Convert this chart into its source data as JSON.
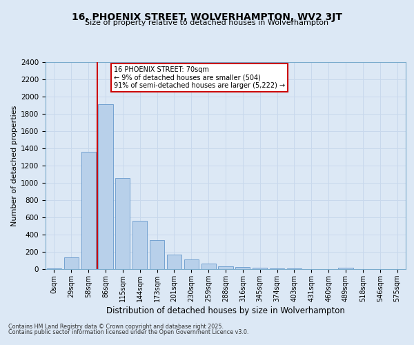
{
  "title": "16, PHOENIX STREET, WOLVERHAMPTON, WV2 3JT",
  "subtitle": "Size of property relative to detached houses in Wolverhampton",
  "xlabel": "Distribution of detached houses by size in Wolverhampton",
  "ylabel": "Number of detached properties",
  "categories": [
    "0sqm",
    "29sqm",
    "58sqm",
    "86sqm",
    "115sqm",
    "144sqm",
    "173sqm",
    "201sqm",
    "230sqm",
    "259sqm",
    "288sqm",
    "316sqm",
    "345sqm",
    "374sqm",
    "403sqm",
    "431sqm",
    "460sqm",
    "489sqm",
    "518sqm",
    "546sqm",
    "575sqm"
  ],
  "values": [
    10,
    140,
    1360,
    1910,
    1055,
    560,
    340,
    170,
    110,
    65,
    35,
    28,
    15,
    10,
    5,
    3,
    2,
    15,
    2,
    1,
    2
  ],
  "bar_color": "#b8d0ea",
  "bar_edge_color": "#6699cc",
  "vline_color": "#cc0000",
  "annotation_title": "16 PHOENIX STREET: 70sqm",
  "annotation_line1": "← 9% of detached houses are smaller (504)",
  "annotation_line2": "91% of semi-detached houses are larger (5,222) →",
  "annotation_box_color": "#ffffff",
  "annotation_border_color": "#cc0000",
  "ylim": [
    0,
    2400
  ],
  "yticks": [
    0,
    200,
    400,
    600,
    800,
    1000,
    1200,
    1400,
    1600,
    1800,
    2000,
    2200,
    2400
  ],
  "grid_color": "#c8d8ec",
  "background_color": "#dce8f5",
  "footnote1": "Contains HM Land Registry data © Crown copyright and database right 2025.",
  "footnote2": "Contains public sector information licensed under the Open Government Licence v3.0."
}
